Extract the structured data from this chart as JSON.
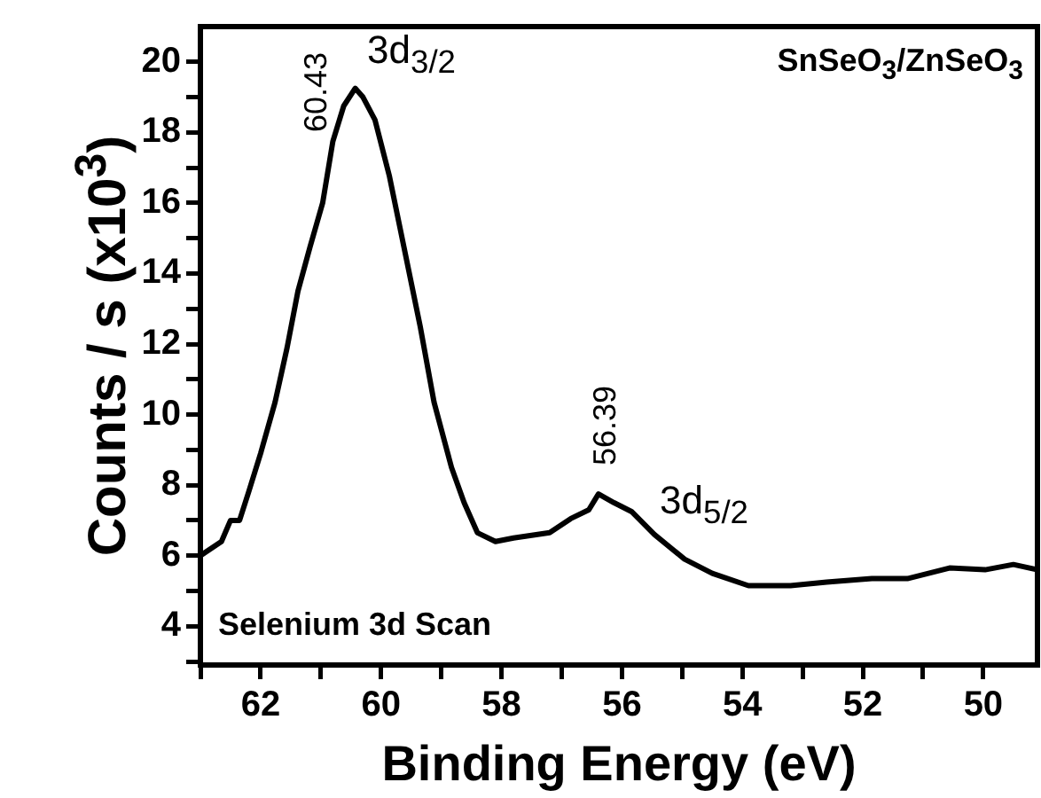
{
  "chart_data": {
    "type": "line",
    "xlabel": "Binding Energy (eV)",
    "ylabel": "Counts / s (x10$^{3}$)",
    "x": [
      63,
      62.65,
      62.5,
      62.35,
      62.2,
      62,
      61.76,
      61.56,
      61.38,
      61.18,
      60.97,
      60.8,
      60.62,
      60.43,
      60.3,
      60.1,
      59.86,
      59.62,
      59.35,
      59.12,
      58.83,
      58.62,
      58.4,
      58.1,
      57.8,
      57.2,
      56.85,
      56.55,
      56.39,
      56.13,
      55.84,
      55.46,
      54.96,
      54.5,
      53.9,
      53.2,
      52.6,
      51.85,
      51.26,
      50.56,
      49.97,
      49.5,
      49.1
    ],
    "series": [
      {
        "color": "#000000",
        "values": [
          6.0,
          6.4,
          7.0,
          7.0,
          7.8,
          8.9,
          10.35,
          11.9,
          13.5,
          14.75,
          16.0,
          17.75,
          18.75,
          19.25,
          19.0,
          18.35,
          16.75,
          14.75,
          12.5,
          10.35,
          8.5,
          7.5,
          6.65,
          6.4,
          6.5,
          6.65,
          7.05,
          7.3,
          7.75,
          7.5,
          7.25,
          6.6,
          5.9,
          5.5,
          5.15,
          5.15,
          5.25,
          5.35,
          5.35,
          5.65,
          5.6,
          5.75,
          5.6
        ]
      }
    ],
    "xlim": [
      63,
      49.1
    ],
    "xticks": [
      {
        "value": 63,
        "label": null
      },
      62,
      {
        "value": 61,
        "label": null
      },
      60,
      {
        "value": 59,
        "label": null
      },
      58,
      {
        "value": 57,
        "label": null
      },
      56,
      {
        "value": 55,
        "label": null
      },
      54,
      {
        "value": 53,
        "label": null
      },
      52,
      {
        "value": 51,
        "label": null
      },
      50
    ],
    "ylim": [
      2.9,
      21
    ],
    "yticks": [
      {
        "value": 3,
        "label": null
      },
      4,
      {
        "value": 5,
        "label": null
      },
      6,
      {
        "value": 7,
        "label": null
      },
      8,
      {
        "value": 9,
        "label": null
      },
      10,
      {
        "value": 11,
        "label": null
      },
      12,
      {
        "value": 13,
        "label": null
      },
      14,
      {
        "value": 15,
        "label": null
      },
      16,
      {
        "value": 17,
        "label": null
      },
      18,
      {
        "value": 19,
        "label": null
      },
      20
    ],
    "grid": false,
    "legend": false,
    "marker": "none",
    "line_style": "solid",
    "annotations": [
      "60.43",
      "3d$_{3/2}$",
      "56.39",
      "3d$_{5/2}$",
      "SnSeO$_{3}$/ZnSeO$_{3}$",
      "Selenium 3d Scan"
    ]
  }
}
